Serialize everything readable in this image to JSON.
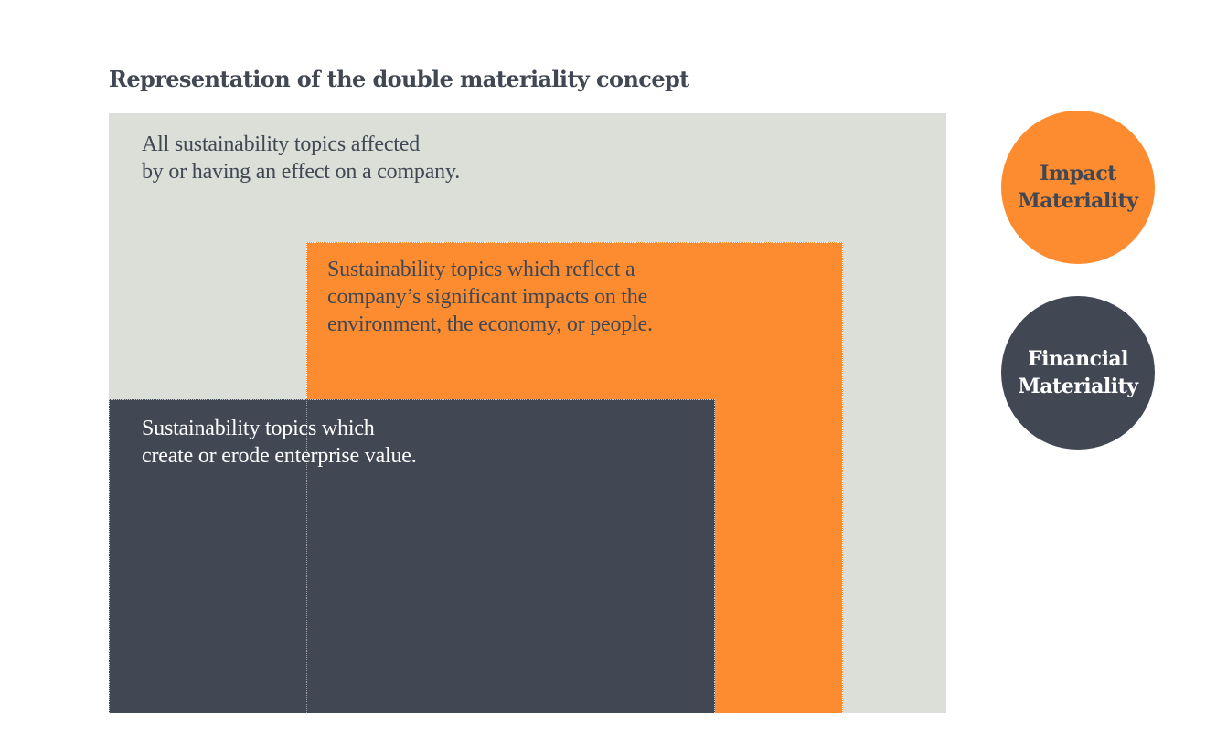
{
  "title": "Representation of the double materiality concept",
  "outer": {
    "line1": "All sustainability topics affected",
    "line2": "by or having an effect on a company."
  },
  "impact_box": {
    "line1": "Sustainability topics which reflect a",
    "line2": "company’s significant impacts on the",
    "line3": "environment, the economy, or people."
  },
  "financial_box": {
    "line1": "Sustainability topics which",
    "line2": "create or erode enterprise value."
  },
  "legend": {
    "impact": {
      "line1": "Impact",
      "line2": "Materiality"
    },
    "financial": {
      "line1": "Financial",
      "line2": "Materiality"
    }
  },
  "colors": {
    "outer": "#dcded8",
    "impact": "#fd8b30",
    "financial": "#414854",
    "text_dark": "#414854"
  }
}
